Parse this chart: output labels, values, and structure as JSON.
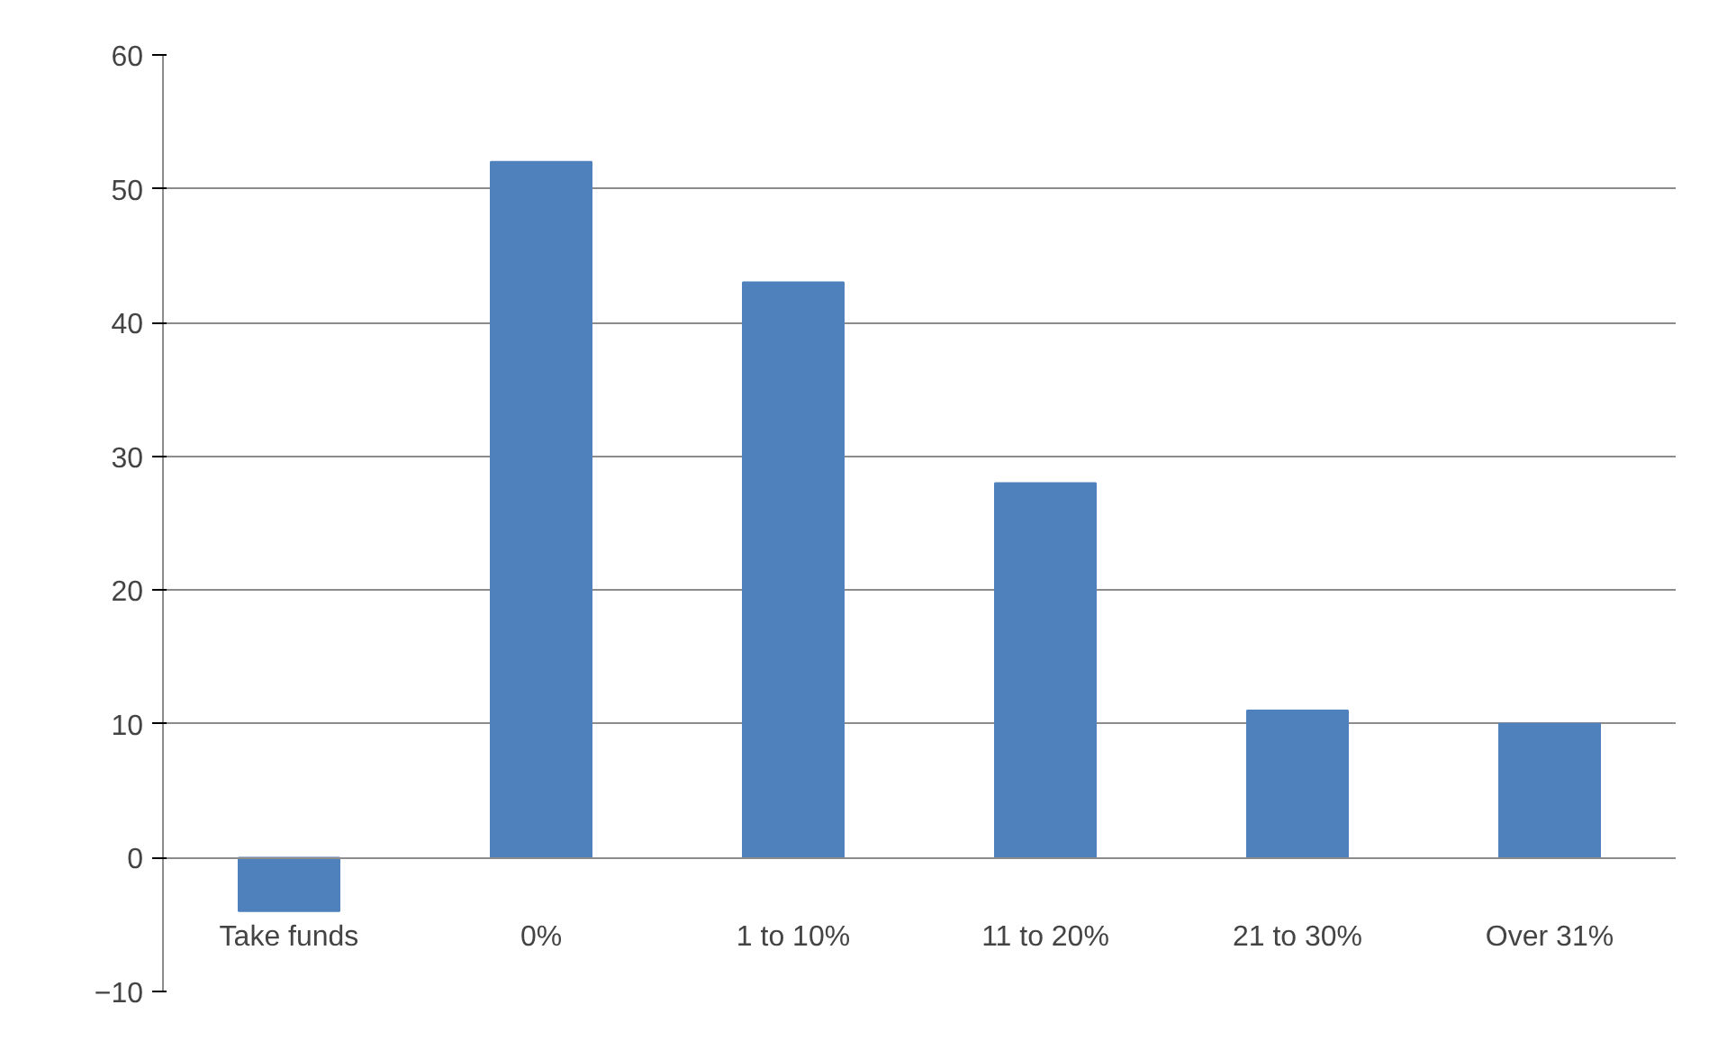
{
  "chart_data": {
    "type": "bar",
    "categories": [
      "Take funds",
      "0%",
      "1 to 10%",
      "11 to 20%",
      "21 to 30%",
      "Over 31%"
    ],
    "values": [
      -4,
      52,
      43,
      28,
      11,
      10
    ],
    "color": "#4f81bd",
    "ylim": [
      -10,
      60
    ],
    "yticks": [
      -10,
      0,
      10,
      20,
      30,
      40,
      50,
      60
    ],
    "grid": "y"
  }
}
